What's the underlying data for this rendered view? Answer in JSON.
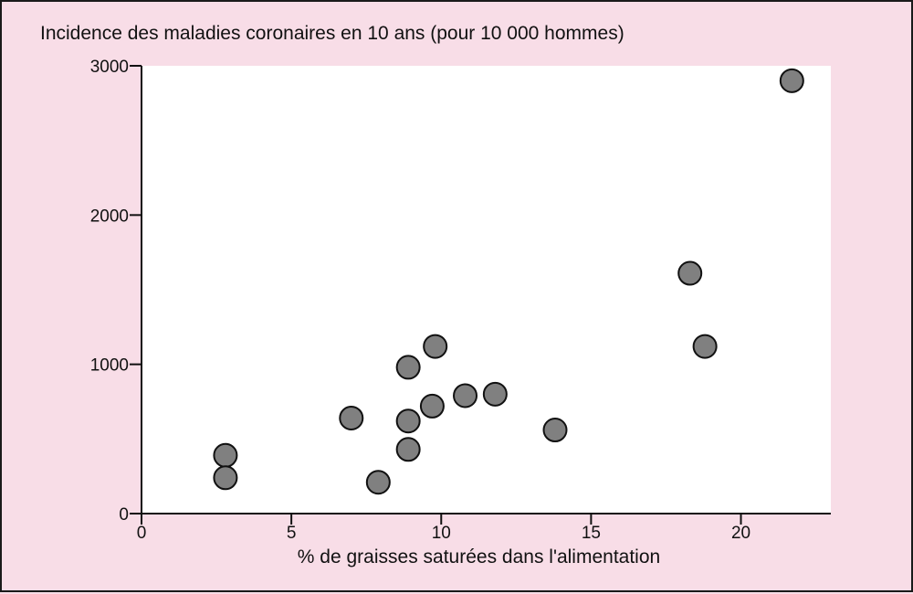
{
  "chart_data": {
    "type": "scatter",
    "title": "Incidence des maladies coronaires en 10 ans (pour 10 000 hommes)",
    "xlabel": "% de graisses saturées dans l'alimentation",
    "ylabel": "",
    "xlim": [
      0,
      23
    ],
    "ylim": [
      0,
      3000
    ],
    "xticks": [
      0,
      5,
      10,
      15,
      20
    ],
    "yticks": [
      0,
      1000,
      2000,
      3000
    ],
    "grid": false,
    "points": [
      {
        "x": 2.8,
        "y": 390
      },
      {
        "x": 2.8,
        "y": 240
      },
      {
        "x": 7.0,
        "y": 640
      },
      {
        "x": 7.9,
        "y": 210
      },
      {
        "x": 8.9,
        "y": 980
      },
      {
        "x": 8.9,
        "y": 620
      },
      {
        "x": 8.9,
        "y": 430
      },
      {
        "x": 9.7,
        "y": 720
      },
      {
        "x": 9.8,
        "y": 1120
      },
      {
        "x": 10.8,
        "y": 790
      },
      {
        "x": 11.8,
        "y": 800
      },
      {
        "x": 13.8,
        "y": 560
      },
      {
        "x": 18.3,
        "y": 1610
      },
      {
        "x": 18.8,
        "y": 1120
      },
      {
        "x": 21.7,
        "y": 2900
      }
    ],
    "colors": {
      "background": "#f8dde7",
      "plot_area": "#ffffff",
      "marker_fill": "#808080",
      "marker_stroke": "#111111",
      "axis": "#111111"
    }
  }
}
